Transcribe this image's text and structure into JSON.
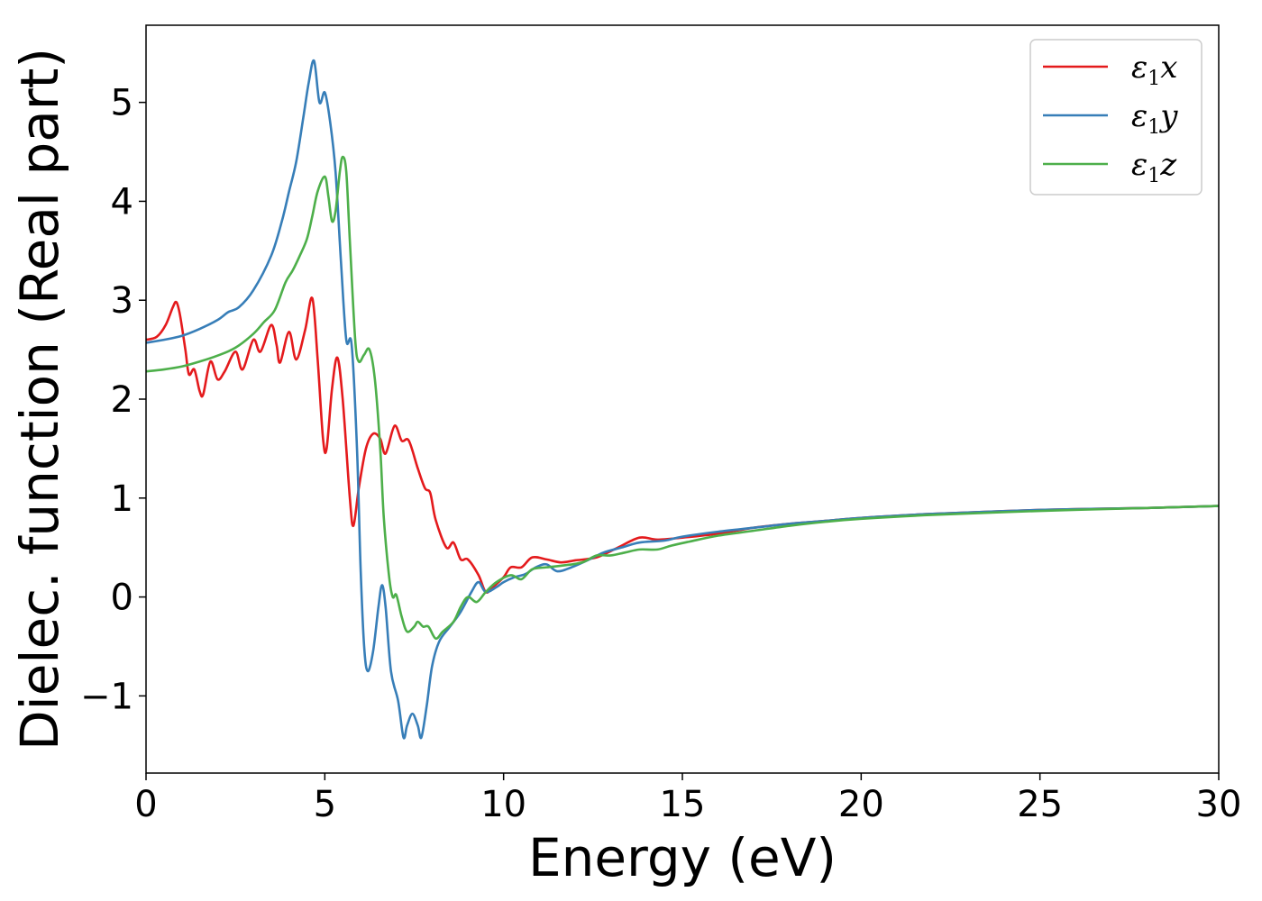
{
  "chart_data": {
    "type": "line",
    "title": "",
    "xlabel": "Energy (eV)",
    "ylabel": "Dielec. function (Real part)",
    "xlim": [
      0,
      30
    ],
    "ylim": [
      -1.78,
      5.78
    ],
    "xticks": [
      0,
      5,
      10,
      15,
      20,
      25,
      30
    ],
    "xtick_labels": [
      "0",
      "5",
      "10",
      "15",
      "20",
      "25",
      "30"
    ],
    "yticks": [
      -1,
      0,
      1,
      2,
      3,
      4,
      5
    ],
    "ytick_labels": [
      "−1",
      "0",
      "1",
      "2",
      "3",
      "4",
      "5"
    ],
    "grid": false,
    "legend_position": "top-right",
    "series": [
      {
        "name": "ε₁x",
        "legend_base": "ε",
        "legend_sub": "1",
        "legend_suffix": "x",
        "color": "#e41a1c",
        "points": [
          [
            0,
            2.6
          ],
          [
            0.3,
            2.63
          ],
          [
            0.55,
            2.75
          ],
          [
            0.75,
            2.93
          ],
          [
            0.85,
            2.98
          ],
          [
            0.95,
            2.85
          ],
          [
            1.1,
            2.5
          ],
          [
            1.2,
            2.25
          ],
          [
            1.35,
            2.3
          ],
          [
            1.5,
            2.08
          ],
          [
            1.6,
            2.05
          ],
          [
            1.8,
            2.38
          ],
          [
            2.0,
            2.2
          ],
          [
            2.2,
            2.28
          ],
          [
            2.5,
            2.48
          ],
          [
            2.7,
            2.3
          ],
          [
            3.0,
            2.6
          ],
          [
            3.2,
            2.48
          ],
          [
            3.5,
            2.75
          ],
          [
            3.65,
            2.55
          ],
          [
            3.75,
            2.37
          ],
          [
            4.0,
            2.68
          ],
          [
            4.2,
            2.4
          ],
          [
            4.45,
            2.7
          ],
          [
            4.65,
            3.02
          ],
          [
            4.8,
            2.4
          ],
          [
            4.95,
            1.6
          ],
          [
            5.05,
            1.5
          ],
          [
            5.2,
            2.1
          ],
          [
            5.35,
            2.42
          ],
          [
            5.5,
            2.0
          ],
          [
            5.7,
            1.0
          ],
          [
            5.8,
            0.72
          ],
          [
            5.95,
            1.1
          ],
          [
            6.15,
            1.5
          ],
          [
            6.35,
            1.65
          ],
          [
            6.55,
            1.6
          ],
          [
            6.7,
            1.45
          ],
          [
            6.95,
            1.73
          ],
          [
            7.15,
            1.58
          ],
          [
            7.35,
            1.58
          ],
          [
            7.6,
            1.3
          ],
          [
            7.8,
            1.1
          ],
          [
            7.95,
            1.05
          ],
          [
            8.1,
            0.78
          ],
          [
            8.4,
            0.5
          ],
          [
            8.6,
            0.55
          ],
          [
            8.8,
            0.38
          ],
          [
            9.0,
            0.38
          ],
          [
            9.3,
            0.22
          ],
          [
            9.5,
            0.05
          ],
          [
            9.7,
            0.1
          ],
          [
            10.0,
            0.2
          ],
          [
            10.2,
            0.3
          ],
          [
            10.5,
            0.3
          ],
          [
            10.8,
            0.4
          ],
          [
            11.2,
            0.38
          ],
          [
            11.6,
            0.35
          ],
          [
            12.0,
            0.37
          ],
          [
            12.6,
            0.4
          ],
          [
            13.2,
            0.5
          ],
          [
            13.8,
            0.6
          ],
          [
            14.3,
            0.58
          ],
          [
            15.0,
            0.6
          ],
          [
            16.0,
            0.64
          ],
          [
            17.0,
            0.7
          ],
          [
            18.0,
            0.74
          ],
          [
            19.0,
            0.77
          ],
          [
            20.0,
            0.8
          ],
          [
            22.0,
            0.84
          ],
          [
            25.0,
            0.88
          ],
          [
            28.0,
            0.9
          ],
          [
            30.0,
            0.92
          ]
        ]
      },
      {
        "name": "ε₁y",
        "legend_base": "ε",
        "legend_sub": "1",
        "legend_suffix": "y",
        "color": "#377eb8",
        "points": [
          [
            0,
            2.57
          ],
          [
            0.5,
            2.6
          ],
          [
            1.0,
            2.64
          ],
          [
            1.5,
            2.71
          ],
          [
            2.0,
            2.8
          ],
          [
            2.3,
            2.88
          ],
          [
            2.6,
            2.93
          ],
          [
            3.0,
            3.1
          ],
          [
            3.5,
            3.45
          ],
          [
            3.8,
            3.8
          ],
          [
            4.0,
            4.1
          ],
          [
            4.2,
            4.4
          ],
          [
            4.4,
            4.85
          ],
          [
            4.55,
            5.2
          ],
          [
            4.7,
            5.42
          ],
          [
            4.85,
            5.0
          ],
          [
            5.0,
            5.1
          ],
          [
            5.15,
            4.8
          ],
          [
            5.3,
            4.3
          ],
          [
            5.45,
            3.4
          ],
          [
            5.6,
            2.6
          ],
          [
            5.75,
            2.55
          ],
          [
            5.9,
            1.5
          ],
          [
            6.0,
            0.3
          ],
          [
            6.1,
            -0.5
          ],
          [
            6.2,
            -0.75
          ],
          [
            6.35,
            -0.55
          ],
          [
            6.5,
            -0.1
          ],
          [
            6.6,
            0.12
          ],
          [
            6.7,
            -0.1
          ],
          [
            6.85,
            -0.75
          ],
          [
            7.05,
            -1.05
          ],
          [
            7.2,
            -1.42
          ],
          [
            7.3,
            -1.3
          ],
          [
            7.45,
            -1.18
          ],
          [
            7.6,
            -1.3
          ],
          [
            7.7,
            -1.42
          ],
          [
            7.85,
            -1.1
          ],
          [
            8.0,
            -0.7
          ],
          [
            8.2,
            -0.45
          ],
          [
            8.5,
            -0.3
          ],
          [
            8.8,
            -0.15
          ],
          [
            9.1,
            0.05
          ],
          [
            9.3,
            0.15
          ],
          [
            9.5,
            0.05
          ],
          [
            9.8,
            0.1
          ],
          [
            10.0,
            0.15
          ],
          [
            10.3,
            0.2
          ],
          [
            10.6,
            0.23
          ],
          [
            10.9,
            0.3
          ],
          [
            11.2,
            0.33
          ],
          [
            11.5,
            0.26
          ],
          [
            11.9,
            0.3
          ],
          [
            12.4,
            0.38
          ],
          [
            12.8,
            0.45
          ],
          [
            13.3,
            0.5
          ],
          [
            13.8,
            0.55
          ],
          [
            14.5,
            0.57
          ],
          [
            15.0,
            0.61
          ],
          [
            16.0,
            0.66
          ],
          [
            17.0,
            0.7
          ],
          [
            18.0,
            0.74
          ],
          [
            19.0,
            0.77
          ],
          [
            20.0,
            0.8
          ],
          [
            22.0,
            0.84
          ],
          [
            25.0,
            0.88
          ],
          [
            28.0,
            0.9
          ],
          [
            30.0,
            0.92
          ]
        ]
      },
      {
        "name": "ε₁z",
        "legend_base": "ε",
        "legend_sub": "1",
        "legend_suffix": "z",
        "color": "#4daf4a",
        "points": [
          [
            0,
            2.28
          ],
          [
            0.5,
            2.3
          ],
          [
            1.0,
            2.33
          ],
          [
            1.5,
            2.38
          ],
          [
            2.0,
            2.44
          ],
          [
            2.5,
            2.52
          ],
          [
            3.0,
            2.66
          ],
          [
            3.3,
            2.78
          ],
          [
            3.6,
            2.9
          ],
          [
            3.9,
            3.18
          ],
          [
            4.1,
            3.3
          ],
          [
            4.3,
            3.45
          ],
          [
            4.5,
            3.62
          ],
          [
            4.65,
            3.85
          ],
          [
            4.8,
            4.1
          ],
          [
            5.0,
            4.25
          ],
          [
            5.1,
            4.05
          ],
          [
            5.2,
            3.8
          ],
          [
            5.3,
            3.9
          ],
          [
            5.42,
            4.3
          ],
          [
            5.5,
            4.45
          ],
          [
            5.6,
            4.3
          ],
          [
            5.7,
            3.6
          ],
          [
            5.85,
            2.6
          ],
          [
            5.95,
            2.38
          ],
          [
            6.1,
            2.45
          ],
          [
            6.25,
            2.5
          ],
          [
            6.4,
            2.2
          ],
          [
            6.55,
            1.5
          ],
          [
            6.65,
            0.8
          ],
          [
            6.8,
            0.2
          ],
          [
            6.9,
            0.0
          ],
          [
            7.0,
            0.02
          ],
          [
            7.15,
            -0.2
          ],
          [
            7.3,
            -0.35
          ],
          [
            7.5,
            -0.3
          ],
          [
            7.6,
            -0.25
          ],
          [
            7.75,
            -0.3
          ],
          [
            7.9,
            -0.3
          ],
          [
            8.1,
            -0.42
          ],
          [
            8.3,
            -0.35
          ],
          [
            8.6,
            -0.25
          ],
          [
            8.8,
            -0.1
          ],
          [
            9.0,
            0.0
          ],
          [
            9.25,
            -0.05
          ],
          [
            9.5,
            0.05
          ],
          [
            9.8,
            0.15
          ],
          [
            10.2,
            0.22
          ],
          [
            10.5,
            0.18
          ],
          [
            10.8,
            0.28
          ],
          [
            11.2,
            0.3
          ],
          [
            11.7,
            0.32
          ],
          [
            12.2,
            0.35
          ],
          [
            12.6,
            0.42
          ],
          [
            13.0,
            0.42
          ],
          [
            13.4,
            0.45
          ],
          [
            13.8,
            0.48
          ],
          [
            14.3,
            0.48
          ],
          [
            14.7,
            0.52
          ],
          [
            15.2,
            0.56
          ],
          [
            16.0,
            0.62
          ],
          [
            17.0,
            0.67
          ],
          [
            18.0,
            0.72
          ],
          [
            19.0,
            0.76
          ],
          [
            20.0,
            0.79
          ],
          [
            22.0,
            0.83
          ],
          [
            25.0,
            0.87
          ],
          [
            28.0,
            0.9
          ],
          [
            30.0,
            0.92
          ]
        ]
      }
    ]
  }
}
